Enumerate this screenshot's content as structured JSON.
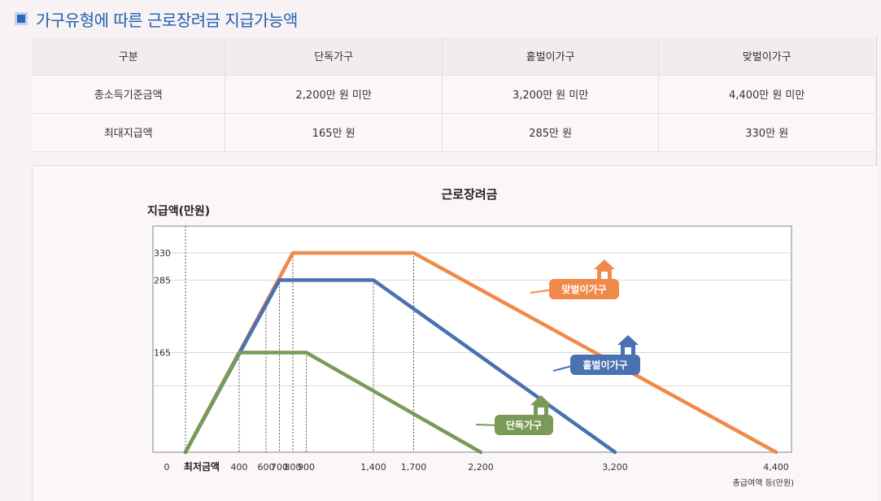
{
  "header": {
    "title": "가구유형에 따른 근로장려금 지급가능액"
  },
  "table": {
    "columns": [
      "구분",
      "단독가구",
      "홑벌이가구",
      "맞벌이가구"
    ],
    "rows": [
      [
        "총소득기준금액",
        "2,200만 원 미만",
        "3,200만 원 미만",
        "4,400만 원 미만"
      ],
      [
        "최대지급액",
        "165만 원",
        "285만 원",
        "330만 원"
      ]
    ]
  },
  "chart_data": {
    "type": "line",
    "title": "근로장려금",
    "ylabel": "지급액(만원)",
    "xlabel": "총급여액 등(만원)",
    "origin_label": "0",
    "min_wage_label": "최저금액",
    "yticks": [
      165,
      285,
      330
    ],
    "xticks": [
      400,
      600,
      700,
      800,
      900,
      1400,
      1700,
      2200,
      3200,
      4400
    ],
    "xtick_labels": [
      "400",
      "600",
      "700",
      "800",
      "900",
      "1,400",
      "1,700",
      "2,200",
      "3,200",
      "4,400"
    ],
    "ylim": [
      0,
      380
    ],
    "series": [
      {
        "name": "단독가구",
        "color": "#7a9a58",
        "points": [
          [
            0,
            0
          ],
          [
            400,
            165
          ],
          [
            900,
            165
          ],
          [
            2200,
            0
          ]
        ]
      },
      {
        "name": "홑벌이가구",
        "color": "#4a72b0",
        "points": [
          [
            0,
            0
          ],
          [
            700,
            285
          ],
          [
            1400,
            285
          ],
          [
            3200,
            0
          ]
        ]
      },
      {
        "name": "맞벌이가구",
        "color": "#f08a4b",
        "points": [
          [
            0,
            0
          ],
          [
            800,
            330
          ],
          [
            1700,
            330
          ],
          [
            4400,
            0
          ]
        ]
      }
    ]
  }
}
